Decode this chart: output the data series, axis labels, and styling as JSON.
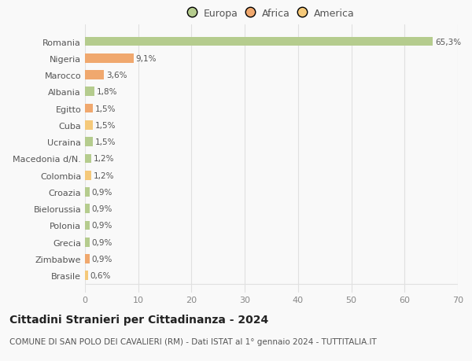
{
  "categories": [
    "Brasile",
    "Zimbabwe",
    "Grecia",
    "Polonia",
    "Bielorussia",
    "Croazia",
    "Colombia",
    "Macedonia d/N.",
    "Ucraina",
    "Cuba",
    "Egitto",
    "Albania",
    "Marocco",
    "Nigeria",
    "Romania"
  ],
  "values": [
    0.6,
    0.9,
    0.9,
    0.9,
    0.9,
    0.9,
    1.2,
    1.2,
    1.5,
    1.5,
    1.5,
    1.8,
    3.6,
    9.1,
    65.3
  ],
  "labels": [
    "0,6%",
    "0,9%",
    "0,9%",
    "0,9%",
    "0,9%",
    "0,9%",
    "1,2%",
    "1,2%",
    "1,5%",
    "1,5%",
    "1,5%",
    "1,8%",
    "3,6%",
    "9,1%",
    "65,3%"
  ],
  "colors": [
    "#f5c97a",
    "#f0a86e",
    "#b5cc8e",
    "#b5cc8e",
    "#b5cc8e",
    "#b5cc8e",
    "#f5c97a",
    "#b5cc8e",
    "#b5cc8e",
    "#f5c97a",
    "#f0a86e",
    "#b5cc8e",
    "#f0a86e",
    "#f0a86e",
    "#b5cc8e"
  ],
  "legend_labels": [
    "Europa",
    "Africa",
    "America"
  ],
  "legend_colors": [
    "#b5cc8e",
    "#f0a86e",
    "#f5c97a"
  ],
  "title": "Cittadini Stranieri per Cittadinanza - 2024",
  "subtitle": "COMUNE DI SAN POLO DEI CAVALIERI (RM) - Dati ISTAT al 1° gennaio 2024 - TUTTITALIA.IT",
  "xlim": [
    0,
    70
  ],
  "xticks": [
    0,
    10,
    20,
    30,
    40,
    50,
    60,
    70
  ],
  "bg_color": "#f9f9f9",
  "grid_color": "#e0e0e0",
  "title_fontsize": 10,
  "subtitle_fontsize": 7.5,
  "label_fontsize": 7.5,
  "tick_fontsize": 8,
  "legend_fontsize": 9
}
